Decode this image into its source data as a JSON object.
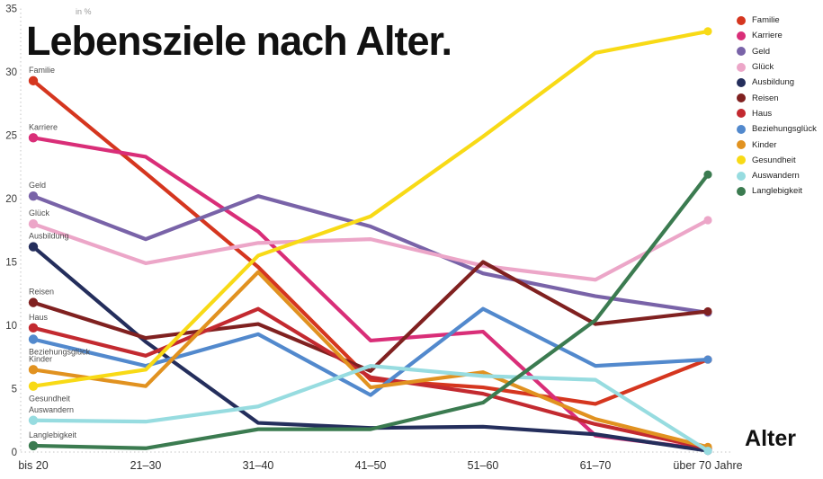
{
  "header": {
    "title": "Lebensziele nach Alter."
  },
  "chart_data": {
    "type": "line",
    "title": "Lebensziele nach Alter.",
    "unit_label": "in %",
    "xlabel": "Alter",
    "ylabel": "in %",
    "categories": [
      "bis 20",
      "21–30",
      "31–40",
      "41–50",
      "51–60",
      "61–70",
      "über 70 Jahre"
    ],
    "y_ticks": [
      0,
      5,
      10,
      15,
      20,
      25,
      30,
      35
    ],
    "ylim": [
      0,
      35
    ],
    "grid": false,
    "legend_position": "top-right",
    "series": [
      {
        "name": "Familie",
        "color": "#d5361f",
        "label_side": "above",
        "values": [
          29.3,
          22.0,
          14.6,
          5.7,
          5.1,
          3.8,
          7.3
        ]
      },
      {
        "name": "Karriere",
        "color": "#d92e78",
        "label_side": "above",
        "values": [
          24.8,
          23.3,
          17.4,
          8.8,
          9.5,
          1.3,
          0.2
        ]
      },
      {
        "name": "Geld",
        "color": "#7963a8",
        "label_side": "above",
        "values": [
          20.2,
          16.8,
          20.2,
          17.8,
          14.1,
          12.3,
          11.0
        ]
      },
      {
        "name": "Glück",
        "color": "#eca6c8",
        "label_side": "above",
        "values": [
          18.0,
          14.9,
          16.5,
          16.8,
          14.7,
          13.6,
          18.3
        ]
      },
      {
        "name": "Ausbildung",
        "color": "#242e5c",
        "label_side": "above",
        "values": [
          16.2,
          8.7,
          2.3,
          1.9,
          2.0,
          1.4,
          0.1
        ]
      },
      {
        "name": "Reisen",
        "color": "#802120",
        "label_side": "above",
        "values": [
          11.8,
          9.0,
          10.1,
          6.4,
          15.0,
          10.1,
          11.1
        ]
      },
      {
        "name": "Haus",
        "color": "#c32a30",
        "label_side": "above",
        "values": [
          9.8,
          7.6,
          11.3,
          5.9,
          4.6,
          2.2,
          0.3
        ]
      },
      {
        "name": "Beziehungsglück",
        "color": "#5289cd",
        "label_side": "below",
        "values": [
          8.9,
          6.8,
          9.3,
          4.5,
          11.3,
          6.8,
          7.3
        ]
      },
      {
        "name": "Kinder",
        "color": "#e19220",
        "label_side": "above",
        "values": [
          6.5,
          5.2,
          14.2,
          5.1,
          6.3,
          2.6,
          0.4
        ]
      },
      {
        "name": "Gesundheit",
        "color": "#f8da16",
        "label_side": "below",
        "values": [
          5.2,
          6.5,
          15.5,
          18.6,
          24.9,
          31.5,
          33.2
        ]
      },
      {
        "name": "Auswandern",
        "color": "#97dce0",
        "label_side": "above",
        "values": [
          2.5,
          2.4,
          3.6,
          6.8,
          6.0,
          5.7,
          0.1
        ]
      },
      {
        "name": "Langlebigkeit",
        "color": "#3b7b50",
        "label_side": "above",
        "values": [
          0.5,
          0.3,
          1.8,
          1.8,
          3.9,
          10.4,
          21.9
        ]
      }
    ]
  }
}
